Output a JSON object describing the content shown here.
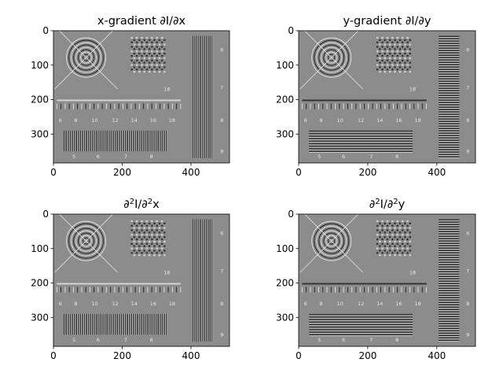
{
  "figure": {
    "background": "#ffffff",
    "panel_fill": "#8c8c8c",
    "light_color": "#e6e6e6",
    "dark_color": "#1e1e1e"
  },
  "chart_data": [
    {
      "type": "heatmap",
      "title": "x-gradient ∂I/∂x",
      "xlabel": "",
      "ylabel": "",
      "xlim": [
        0,
        512
      ],
      "ylim": [
        384,
        0
      ],
      "x_ticks": [
        0,
        200,
        400
      ],
      "y_ticks": [
        0,
        100,
        200,
        300
      ],
      "grid": false,
      "colormap": "gray",
      "orientation": "x",
      "clip_mask": "full",
      "scale_numbers": [
        "6",
        "8",
        "10",
        "12",
        "14",
        "16",
        "18"
      ],
      "bar_numbers": [
        "5",
        "6",
        "7",
        "8"
      ],
      "right_numbers": [
        "6",
        "7",
        "8",
        "9"
      ],
      "small_number": "18"
    },
    {
      "type": "heatmap",
      "title": "y-gradient ∂I/∂y",
      "xlabel": "",
      "ylabel": "",
      "xlim": [
        0,
        512
      ],
      "ylim": [
        384,
        0
      ],
      "x_ticks": [
        0,
        200,
        400
      ],
      "y_ticks": [
        0,
        100,
        200,
        300
      ],
      "grid": false,
      "colormap": "gray",
      "orientation": "y",
      "clip_mask": "full",
      "scale_numbers": [
        "6",
        "8",
        "10",
        "12",
        "14",
        "16",
        "18"
      ],
      "bar_numbers": [
        "5",
        "6",
        "7",
        "8"
      ],
      "right_numbers": [
        "6",
        "7",
        "8",
        "9"
      ],
      "small_number": "18"
    },
    {
      "type": "heatmap",
      "title": "∂²I/∂²x",
      "xlabel": "",
      "ylabel": "",
      "xlim": [
        0,
        512
      ],
      "ylim": [
        384,
        0
      ],
      "x_ticks": [
        0,
        200,
        400
      ],
      "y_ticks": [
        0,
        100,
        200,
        300
      ],
      "grid": false,
      "colormap": "gray",
      "orientation": "x",
      "clip_mask": "full",
      "scale_numbers": [
        "6",
        "8",
        "10",
        "12",
        "14",
        "16",
        "18"
      ],
      "bar_numbers": [
        "5",
        "6",
        "7",
        "8"
      ],
      "right_numbers": [
        "6",
        "7",
        "8",
        "9"
      ],
      "small_number": "18"
    },
    {
      "type": "heatmap",
      "title": "∂²I/∂²y",
      "xlabel": "",
      "ylabel": "",
      "xlim": [
        0,
        512
      ],
      "ylim": [
        384,
        0
      ],
      "x_ticks": [
        0,
        200,
        400
      ],
      "y_ticks": [
        0,
        100,
        200,
        300
      ],
      "grid": false,
      "colormap": "gray",
      "orientation": "y",
      "clip_mask": "full",
      "scale_numbers": [
        "6",
        "8",
        "10",
        "12",
        "14",
        "16",
        "18"
      ],
      "bar_numbers": [
        "5",
        "6",
        "7",
        "8"
      ],
      "right_numbers": [
        "6",
        "7",
        "8",
        "9"
      ],
      "small_number": "18"
    }
  ]
}
